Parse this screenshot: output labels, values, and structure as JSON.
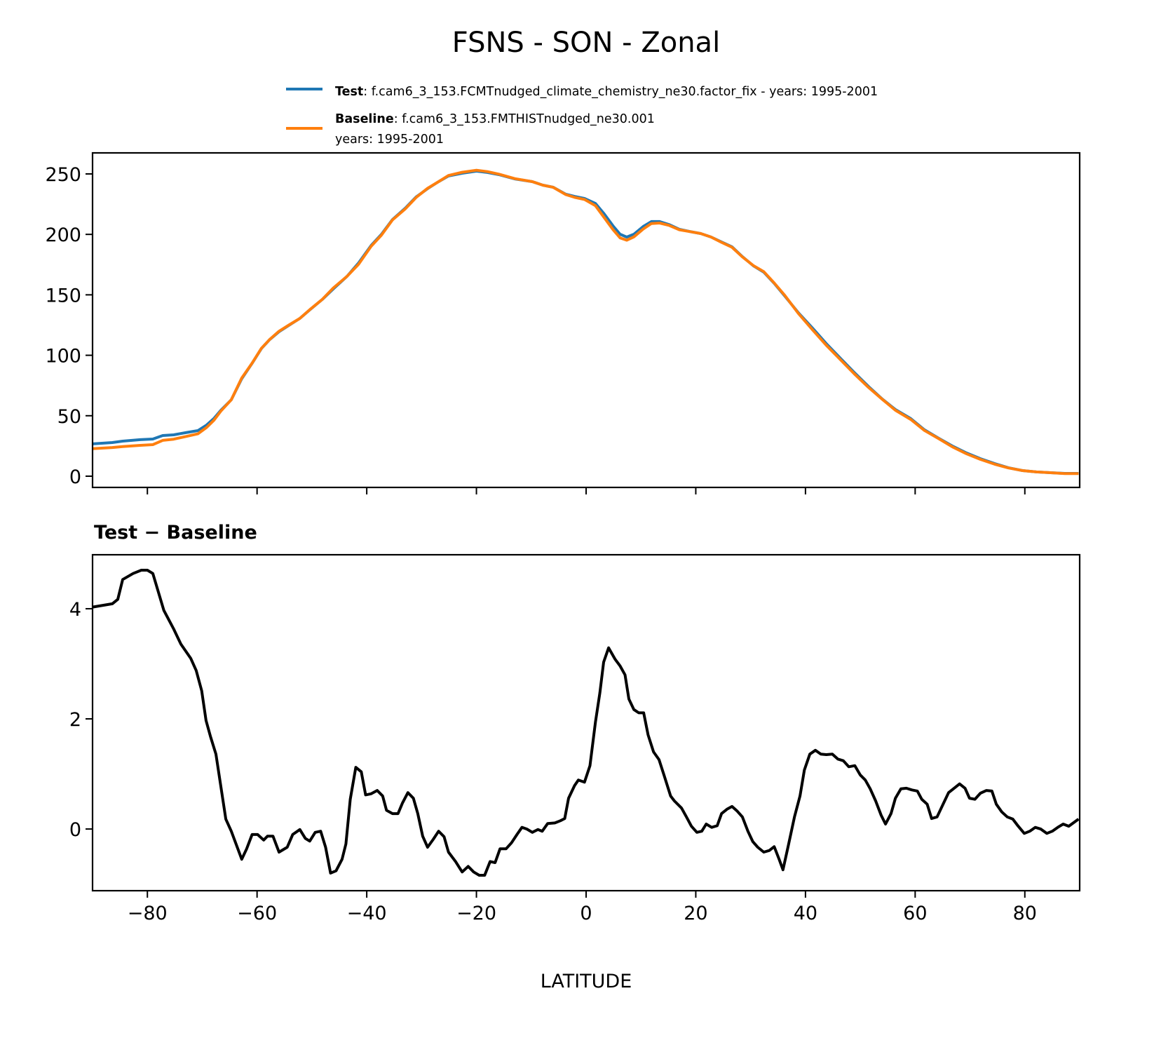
{
  "title": "FSNS - SON - Zonal",
  "legend": {
    "test": {
      "name": "Test",
      "desc": ": f.cam6_3_153.FCMTnudged_climate_chemistry_ne30.factor_fix - years: 1995-2001",
      "color": "#1f77b4"
    },
    "baseline": {
      "name": "Baseline",
      "desc": ": f.cam6_3_153.FMTHISTnudged_ne30.001",
      "desc2": "years: 1995-2001",
      "color": "#ff7f0e"
    }
  },
  "chart_data": [
    {
      "type": "line",
      "title": "",
      "xlabel": "",
      "ylabel": "",
      "xlim": [
        -90,
        90
      ],
      "ylim": [
        -9.3,
        267.4
      ],
      "xticks": [
        -80,
        -60,
        -40,
        -20,
        0,
        20,
        40,
        60,
        80
      ],
      "yticks": [
        0,
        50,
        100,
        150,
        200,
        250
      ],
      "ytick_labels": [
        "0",
        "50",
        "100",
        "150",
        "200",
        "250"
      ],
      "grid": false,
      "legend_placement": "top",
      "x": [
        -90,
        -86.4,
        -84.5,
        -81.3,
        -79,
        -77.2,
        -75.2,
        -73,
        -70.8,
        -69.2,
        -67.9,
        -66.6,
        -64.7,
        -62.8,
        -60.9,
        -59.2,
        -57.7,
        -56,
        -54.2,
        -52.2,
        -50.4,
        -48.1,
        -46.1,
        -43.6,
        -41.5,
        -39.2,
        -37.3,
        -35.3,
        -33,
        -31,
        -28.9,
        -26.9,
        -25.1,
        -22.6,
        -20,
        -18,
        -15.9,
        -13,
        -9.8,
        -7.9,
        -6,
        -3.7,
        -2.1,
        -0.3,
        1.7,
        3.2,
        4.9,
        6.2,
        7.4,
        8.7,
        10.4,
        11.9,
        13.4,
        15.1,
        17,
        18.9,
        20.9,
        22.8,
        24.7,
        26.6,
        28.5,
        30.5,
        32.4,
        34.3,
        36.2,
        38.7,
        41.3,
        43.8,
        46.4,
        48.9,
        51.5,
        54,
        56.4,
        59.2,
        61.7,
        64.3,
        66.8,
        69.4,
        71.9,
        74.5,
        77,
        79.6,
        82.1,
        84.7,
        87.3,
        89.8
      ],
      "series": [
        {
          "name": "Test",
          "color": "#1f77b4",
          "values": [
            26.7,
            27.8,
            29,
            30.2,
            30.7,
            33.6,
            34.2,
            36,
            37.7,
            42.3,
            47.6,
            54.5,
            63.2,
            80.6,
            93.4,
            105.6,
            113,
            119.5,
            124.7,
            130.5,
            137.5,
            146.2,
            154.9,
            165.3,
            176.3,
            190.8,
            200.1,
            212.3,
            221.6,
            230.9,
            237.8,
            243.6,
            248.3,
            250.6,
            252.3,
            251.2,
            249.4,
            245.9,
            243.6,
            240.7,
            239,
            233.2,
            231.4,
            229.7,
            225.6,
            217.5,
            207.1,
            200.1,
            197.8,
            200.1,
            206.5,
            210.6,
            210.6,
            208.2,
            204.2,
            202.4,
            200.7,
            197.8,
            193.7,
            189.7,
            181.6,
            174,
            168.8,
            159.5,
            149.1,
            135.2,
            122.4,
            109.6,
            97.4,
            85.8,
            74.2,
            63.8,
            55.1,
            47.6,
            38.3,
            31.3,
            24.9,
            19.1,
            14.5,
            10.4,
            7,
            4.6,
            3.5,
            2.9,
            2.3,
            2.3
          ]
        },
        {
          "name": "Baseline",
          "color": "#ff7f0e",
          "values": [
            22.7,
            23.7,
            24.5,
            25.5,
            26.1,
            29.6,
            30.6,
            32.8,
            35,
            40.3,
            46.1,
            53.8,
            63.2,
            81.2,
            93.5,
            105.8,
            113.1,
            119.9,
            125,
            130.5,
            137.7,
            146.3,
            155.7,
            165.3,
            175.2,
            190.2,
            199.5,
            212,
            221,
            230.5,
            238.1,
            243.6,
            248.7,
            251.4,
            253.1,
            251.9,
            249.8,
            246.1,
            243.6,
            240.7,
            238.9,
            232.9,
            230.6,
            228.9,
            223.7,
            214.5,
            204,
            197.1,
            195.2,
            197.9,
            204.4,
            209,
            209.4,
            207.5,
            203.8,
            202.3,
            200.7,
            197.8,
            193.4,
            189.3,
            181.4,
            174.2,
            169.2,
            159.8,
            149.7,
            134.7,
            121,
            108.3,
            96.2,
            84.7,
            73.4,
            63.6,
            54.5,
            46.9,
            37.8,
            31,
            24.2,
            18.4,
            13.9,
            9.9,
            6.8,
            4.6,
            3.5,
            2.9,
            2.2,
            2.1
          ]
        }
      ]
    },
    {
      "type": "line",
      "title": "Test − Baseline",
      "xlabel": "LATITUDE",
      "ylabel": "",
      "xlim": [
        -90,
        90
      ],
      "ylim": [
        -1.12,
        4.98
      ],
      "xticks": [
        -80,
        -60,
        -40,
        -20,
        0,
        20,
        40,
        60,
        80
      ],
      "xtick_labels": [
        "−80",
        "−60",
        "−40",
        "−20",
        "0",
        "20",
        "40",
        "60",
        "80"
      ],
      "yticks": [
        0,
        2,
        4
      ],
      "ytick_labels": [
        "0",
        "2",
        "4"
      ],
      "grid": false,
      "x": [
        -90,
        -86.4,
        -85.4,
        -84.5,
        -82.6,
        -81.1,
        -80,
        -79,
        -77,
        -75.2,
        -73.9,
        -72.1,
        -71.1,
        -70.1,
        -69.3,
        -68.5,
        -67.5,
        -65.7,
        -64.7,
        -62.8,
        -61.9,
        -60.9,
        -59.9,
        -58.8,
        -58.1,
        -57.1,
        -56,
        -54.5,
        -53.5,
        -52.2,
        -51.2,
        -50.4,
        -49.4,
        -48.4,
        -47.5,
        -46.6,
        -45.6,
        -44.5,
        -43.8,
        -43,
        -42,
        -41,
        -40.2,
        -39.2,
        -38.1,
        -37.1,
        -36.4,
        -35.3,
        -34.3,
        -33.5,
        -32.5,
        -31.5,
        -30.7,
        -29.8,
        -28.9,
        -27.9,
        -26.9,
        -25.9,
        -25.1,
        -23.8,
        -22.6,
        -21.5,
        -20.5,
        -19.5,
        -18.5,
        -17.5,
        -16.6,
        -15.7,
        -14.6,
        -13.6,
        -12.6,
        -11.7,
        -10.8,
        -9.8,
        -8.8,
        -8,
        -7,
        -5.7,
        -4.7,
        -3.9,
        -3.2,
        -2.1,
        -1.4,
        -0.3,
        0.7,
        1.7,
        2.5,
        3.2,
        4.1,
        5.3,
        6.2,
        7.1,
        7.8,
        8.7,
        9.6,
        10.5,
        11.3,
        12.3,
        13.3,
        14.2,
        15.4,
        16.1,
        17.4,
        18.3,
        19.2,
        20.2,
        21.1,
        21.9,
        22.9,
        23.9,
        24.7,
        25.7,
        26.6,
        27.5,
        28.5,
        29.5,
        30.4,
        31.3,
        32.4,
        33.4,
        34.3,
        35.2,
        35.9,
        36.9,
        38,
        39,
        39.8,
        40.8,
        41.8,
        42.8,
        43.8,
        44.9,
        45.9,
        46.9,
        47.9,
        49,
        50,
        50.9,
        51.8,
        52.8,
        53.8,
        54.6,
        55.6,
        56.4,
        57.4,
        58.4,
        59.4,
        60.4,
        61.2,
        62.2,
        63,
        64,
        65,
        66.1,
        67.1,
        68.1,
        69.1,
        69.9,
        70.9,
        71.9,
        73,
        74,
        74.8,
        75.8,
        76.8,
        77.8,
        78.8,
        79.9,
        80.9,
        81.9,
        82.9,
        84,
        85,
        86,
        87,
        88,
        89.8
      ],
      "series": [
        {
          "color": "#000000",
          "values": [
            4.03,
            4.09,
            4.17,
            4.53,
            4.64,
            4.7,
            4.7,
            4.64,
            3.97,
            3.63,
            3.36,
            3.1,
            2.88,
            2.51,
            1.97,
            1.68,
            1.36,
            0.18,
            -0.04,
            -0.55,
            -0.36,
            -0.1,
            -0.1,
            -0.2,
            -0.13,
            -0.13,
            -0.42,
            -0.33,
            -0.1,
            -0.01,
            -0.17,
            -0.22,
            -0.06,
            -0.04,
            -0.33,
            -0.8,
            -0.76,
            -0.55,
            -0.27,
            0.54,
            1.12,
            1.04,
            0.62,
            0.64,
            0.7,
            0.6,
            0.34,
            0.28,
            0.28,
            0.47,
            0.66,
            0.56,
            0.28,
            -0.13,
            -0.33,
            -0.19,
            -0.04,
            -0.14,
            -0.42,
            -0.59,
            -0.78,
            -0.68,
            -0.78,
            -0.84,
            -0.84,
            -0.59,
            -0.61,
            -0.36,
            -0.36,
            -0.25,
            -0.1,
            0.03,
            0,
            -0.06,
            -0.01,
            -0.04,
            0.1,
            0.11,
            0.15,
            0.19,
            0.56,
            0.79,
            0.89,
            0.85,
            1.15,
            1.94,
            2.47,
            3.03,
            3.29,
            3.08,
            2.96,
            2.8,
            2.36,
            2.17,
            2.11,
            2.11,
            1.71,
            1.4,
            1.26,
            0.98,
            0.6,
            0.51,
            0.38,
            0.22,
            0.05,
            -0.06,
            -0.04,
            0.09,
            0.03,
            0.06,
            0.28,
            0.36,
            0.41,
            0.33,
            0.22,
            -0.04,
            -0.23,
            -0.33,
            -0.42,
            -0.39,
            -0.32,
            -0.55,
            -0.74,
            -0.29,
            0.22,
            0.6,
            1.07,
            1.36,
            1.43,
            1.36,
            1.35,
            1.36,
            1.27,
            1.24,
            1.13,
            1.15,
            0.98,
            0.89,
            0.73,
            0.51,
            0.25,
            0.09,
            0.28,
            0.56,
            0.73,
            0.74,
            0.71,
            0.69,
            0.54,
            0.45,
            0.19,
            0.22,
            0.43,
            0.66,
            0.74,
            0.82,
            0.74,
            0.56,
            0.54,
            0.65,
            0.7,
            0.69,
            0.45,
            0.31,
            0.22,
            0.18,
            0.05,
            -0.08,
            -0.04,
            0.03,
            0,
            -0.08,
            -0.04,
            0.03,
            0.09,
            0.05,
            0.18
          ]
        }
      ]
    }
  ]
}
